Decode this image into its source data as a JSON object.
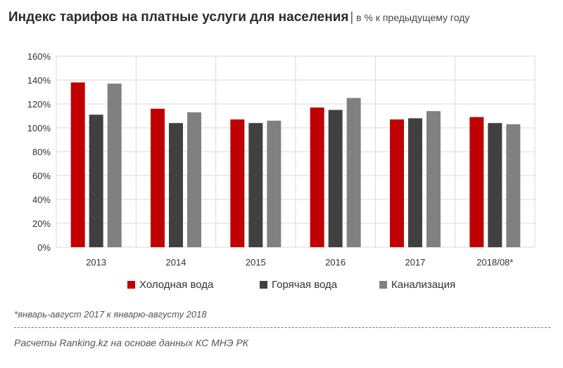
{
  "header": {
    "title": "Индекс тарифов на платные услуги для населения",
    "separator": "|",
    "subtitle": "в % к предыдущему году"
  },
  "chart_data": {
    "type": "bar",
    "title": "Индекс тарифов на платные услуги для населения",
    "subtitle": "в % к предыдущему году",
    "categories": [
      "2013",
      "2014",
      "2015",
      "2016",
      "2017",
      "2018/08*"
    ],
    "series": [
      {
        "name": "Холодная вода",
        "color": "#c00000",
        "values": [
          138,
          116,
          107,
          117,
          107,
          109
        ]
      },
      {
        "name": "Горячая вода",
        "color": "#404040",
        "values": [
          111,
          104,
          104,
          115,
          108,
          104
        ]
      },
      {
        "name": "Канализация",
        "color": "#808080",
        "values": [
          137,
          113,
          106,
          125,
          114,
          103
        ]
      }
    ],
    "ylim": [
      0,
      160
    ],
    "yticks": [
      0,
      20,
      40,
      60,
      80,
      100,
      120,
      140,
      160
    ],
    "ytick_labels": [
      "0%",
      "20%",
      "40%",
      "60%",
      "80%",
      "100%",
      "120%",
      "140%",
      "160%"
    ],
    "xlabel": "",
    "ylabel": "",
    "grid": true,
    "legend": "bottom"
  },
  "footnote": "*январь-август 2017 к январю-августу 2018",
  "source": "Расчеты Ranking.kz на основе данных КС МНЭ РК"
}
